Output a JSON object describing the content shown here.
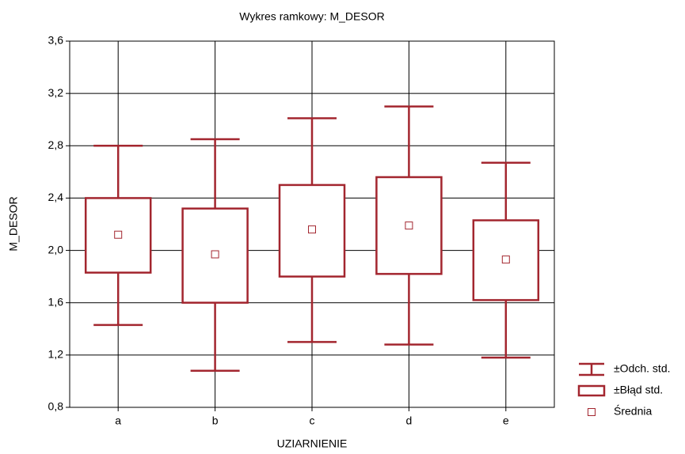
{
  "chart_data": {
    "type": "box",
    "title": "Wykres ramkowy: M_DESOR",
    "x_label": "UZIARNIENIE",
    "y_label": "M_DESOR",
    "categories": [
      "a",
      "b",
      "c",
      "d",
      "e"
    ],
    "color": "#a3262f",
    "series": [
      {
        "name": "±Odch. std.",
        "low": [
          1.43,
          1.08,
          1.3,
          1.28,
          1.18
        ],
        "high": [
          2.8,
          2.85,
          3.01,
          3.1,
          2.67
        ]
      },
      {
        "name": "±Błąd std.",
        "low": [
          1.83,
          1.6,
          1.8,
          1.82,
          1.62
        ],
        "high": [
          2.4,
          2.32,
          2.5,
          2.56,
          2.23
        ]
      },
      {
        "name": "Średnia",
        "values": [
          2.12,
          1.97,
          2.16,
          2.19,
          1.93
        ]
      }
    ],
    "ylim": [
      0.8,
      3.6
    ],
    "yticks": [
      {
        "value": 0.8,
        "label": "0,8"
      },
      {
        "value": 1.2,
        "label": "1,2"
      },
      {
        "value": 1.6,
        "label": "1,6"
      },
      {
        "value": 2.0,
        "label": "2,0"
      },
      {
        "value": 2.4,
        "label": "2,4"
      },
      {
        "value": 2.8,
        "label": "2,8"
      },
      {
        "value": 3.2,
        "label": "3,2"
      },
      {
        "value": 3.6,
        "label": "3,6"
      }
    ],
    "grid": true
  }
}
